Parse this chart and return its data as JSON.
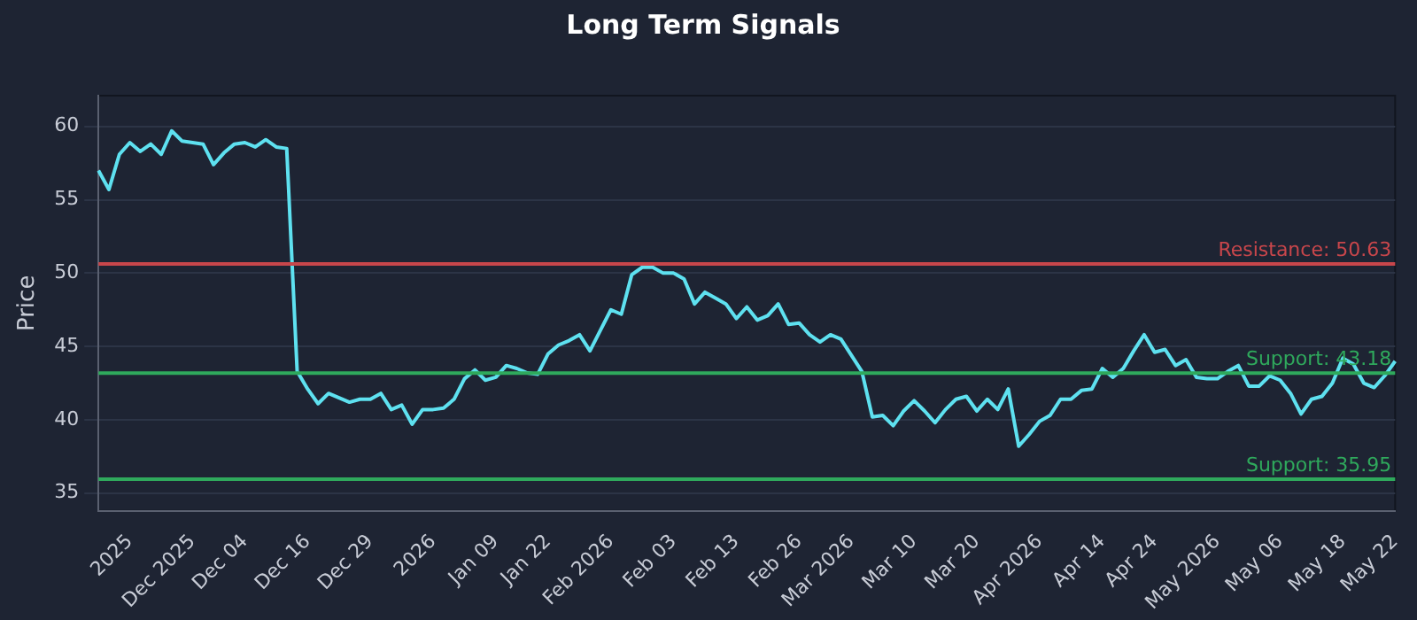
{
  "chart_data": {
    "type": "line",
    "title": "Long Term Signals",
    "ylabel": "Price",
    "categories": [
      null,
      null,
      null,
      "2025",
      null,
      null,
      null,
      null,
      null,
      "Dec 2025",
      null,
      null,
      null,
      null,
      "Dec 04",
      null,
      null,
      null,
      null,
      null,
      "Dec 16",
      null,
      null,
      null,
      null,
      null,
      "Dec 29",
      null,
      null,
      null,
      null,
      null,
      "2026",
      null,
      null,
      null,
      null,
      null,
      "Jan 09",
      null,
      null,
      null,
      null,
      "Jan 22",
      null,
      null,
      null,
      null,
      null,
      "Feb 2026",
      null,
      null,
      null,
      null,
      null,
      "Feb 03",
      null,
      null,
      null,
      null,
      null,
      "Feb 13",
      null,
      null,
      null,
      null,
      null,
      "Feb 26",
      null,
      null,
      null,
      null,
      "Mar 2026",
      null,
      null,
      null,
      null,
      null,
      "Mar 10",
      null,
      null,
      null,
      null,
      null,
      "Mar 20",
      null,
      null,
      null,
      null,
      null,
      "Apr 2026",
      null,
      null,
      null,
      null,
      null,
      "Apr 14",
      null,
      null,
      null,
      null,
      "Apr 24",
      null,
      null,
      null,
      null,
      null,
      "May 2026",
      null,
      null,
      null,
      null,
      null,
      "May 06",
      null,
      null,
      null,
      null,
      null,
      "May 18",
      null,
      null,
      null,
      null,
      "May 22"
    ],
    "series": [
      {
        "color": "#5ee1f0",
        "values": [
          57.0,
          55.7,
          58.1,
          58.9,
          58.3,
          58.8,
          58.1,
          59.7,
          59.0,
          58.9,
          58.8,
          57.4,
          58.2,
          58.8,
          58.9,
          58.6,
          59.1,
          58.6,
          58.5,
          43.3,
          42.1,
          41.1,
          41.8,
          41.5,
          41.2,
          41.4,
          41.4,
          41.8,
          40.7,
          41.0,
          39.7,
          40.7,
          40.7,
          40.8,
          41.4,
          42.8,
          43.4,
          42.7,
          42.9,
          43.7,
          43.5,
          43.2,
          43.1,
          44.5,
          45.1,
          45.4,
          45.8,
          44.7,
          46.1,
          47.5,
          47.2,
          49.9,
          50.4,
          50.4,
          50.0,
          50.0,
          49.6,
          47.9,
          48.7,
          48.3,
          47.9,
          46.9,
          47.7,
          46.8,
          47.1,
          47.9,
          46.5,
          46.6,
          45.8,
          45.3,
          45.8,
          45.5,
          44.4,
          43.3,
          40.2,
          40.3,
          39.6,
          40.6,
          41.3,
          40.6,
          39.8,
          40.7,
          41.4,
          41.6,
          40.6,
          41.4,
          40.7,
          42.1,
          38.2,
          39.0,
          39.9,
          40.3,
          41.4,
          41.4,
          42.0,
          42.1,
          43.5,
          42.9,
          43.5,
          44.7,
          45.8,
          44.6,
          44.8,
          43.7,
          44.1,
          42.9,
          42.8,
          42.8,
          43.3,
          43.7,
          42.3,
          42.3,
          43.0,
          42.7,
          41.8,
          40.4,
          41.4,
          41.6,
          42.5,
          44.2,
          43.8,
          42.5,
          42.2,
          43.0,
          44.0
        ]
      }
    ],
    "ylim": [
      33.8,
      62.1
    ],
    "yticks": [
      35,
      40,
      45,
      50,
      55,
      60
    ],
    "grid": "y",
    "ref_lines": [
      {
        "axis": "y",
        "value": 50.63,
        "label": "Resistance: 50.63",
        "color": "#c8464b"
      },
      {
        "axis": "y",
        "value": 43.18,
        "label": "Support: 43.18",
        "color": "#2fa95c"
      },
      {
        "axis": "y",
        "value": 35.95,
        "label": "Support: 35.95",
        "color": "#2fa95c"
      }
    ]
  }
}
